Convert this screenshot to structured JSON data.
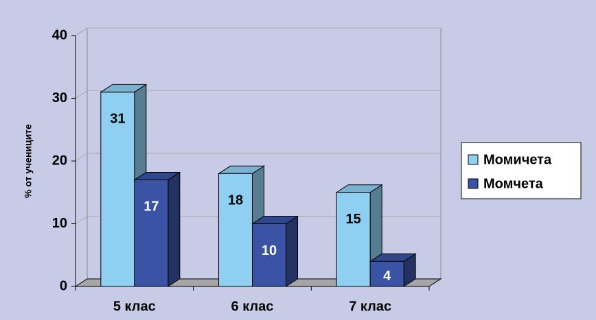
{
  "chart_data": {
    "type": "bar3d",
    "y_label": "% от учениците",
    "categories": [
      "5 клас",
      "6 клас",
      "7 клас"
    ],
    "series": [
      {
        "name": "Момичета",
        "color": "#8fd0f2",
        "values": [
          31,
          18,
          15
        ]
      },
      {
        "name": "Момчета",
        "color": "#3a53a4",
        "values": [
          17,
          10,
          4
        ]
      }
    ],
    "ylim": [
      0,
      40
    ],
    "yticks": [
      0,
      10,
      20,
      30,
      40
    ],
    "grid": true,
    "legend": "right"
  }
}
